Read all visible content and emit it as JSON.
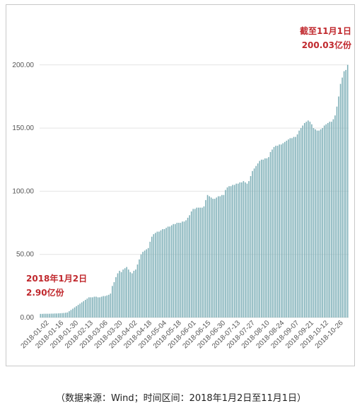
{
  "chart_data": {
    "type": "bar",
    "color": "#7fb0b8",
    "y_ticks": [
      "0.00",
      "50.00",
      "100.00",
      "150.00",
      "200.00"
    ],
    "ylim": [
      0,
      215
    ],
    "grid": "horizontal",
    "x_tick_labels": [
      "2018-01-02",
      "2018-01-16",
      "2018-01-30",
      "2018-02-13",
      "2018-03-06",
      "2018-03-20",
      "2018-04-02",
      "2018-04-18",
      "2018-05-04",
      "2018-05-18",
      "2018-06-01",
      "2018-06-15",
      "2018-06-30",
      "2018-07-13",
      "2018-07-27",
      "2018-08-10",
      "2018-08-24",
      "2018-09-07",
      "2018-09-21",
      "2018-10-12",
      "2018-10-26"
    ],
    "values": [
      2.9,
      2.9,
      3,
      3,
      3,
      3,
      3.1,
      3.1,
      3.2,
      3.2,
      3.3,
      3.4,
      3.5,
      3.6,
      3.8,
      4,
      5,
      6,
      7,
      8,
      9,
      10,
      11,
      12,
      13,
      14,
      15,
      16,
      16,
      16,
      16.5,
      16.5,
      16,
      16,
      16.5,
      17,
      17,
      17.5,
      18,
      19,
      25,
      28,
      32,
      35,
      37,
      36,
      38,
      39,
      40,
      38,
      36,
      35,
      37,
      38,
      42,
      46,
      50,
      52,
      53,
      54,
      55,
      60,
      64,
      66,
      67,
      68,
      68,
      69,
      70,
      70,
      71,
      72,
      72,
      73,
      74,
      74,
      75,
      75,
      75,
      76,
      76,
      77,
      79,
      81,
      84,
      86,
      86,
      87,
      87,
      87,
      87,
      88,
      93,
      97,
      96,
      95,
      94,
      94,
      95,
      96,
      96,
      97,
      97,
      101,
      103,
      104,
      104,
      105,
      105,
      106,
      106,
      107,
      107,
      108,
      107,
      106,
      108,
      112,
      116,
      118,
      120,
      122,
      124,
      125,
      125,
      126,
      126,
      127,
      131,
      133,
      135,
      136,
      136,
      137,
      137,
      138,
      139,
      140,
      141,
      142,
      142,
      143,
      143,
      145,
      148,
      150,
      152,
      154,
      155,
      156,
      155,
      153,
      150,
      149,
      148,
      148,
      149,
      150,
      152,
      153,
      154,
      155,
      155,
      157,
      160,
      167,
      175,
      185,
      190,
      195,
      196,
      200.03
    ],
    "annotations": [
      {
        "line1": "2018年1月2日",
        "line2": "2.90亿份"
      },
      {
        "line1": "截至11月1日",
        "line2": "200.03亿份"
      }
    ]
  },
  "source_note": "（数据来源：Wind；时间区间：2018年1月2日至11月1日）"
}
